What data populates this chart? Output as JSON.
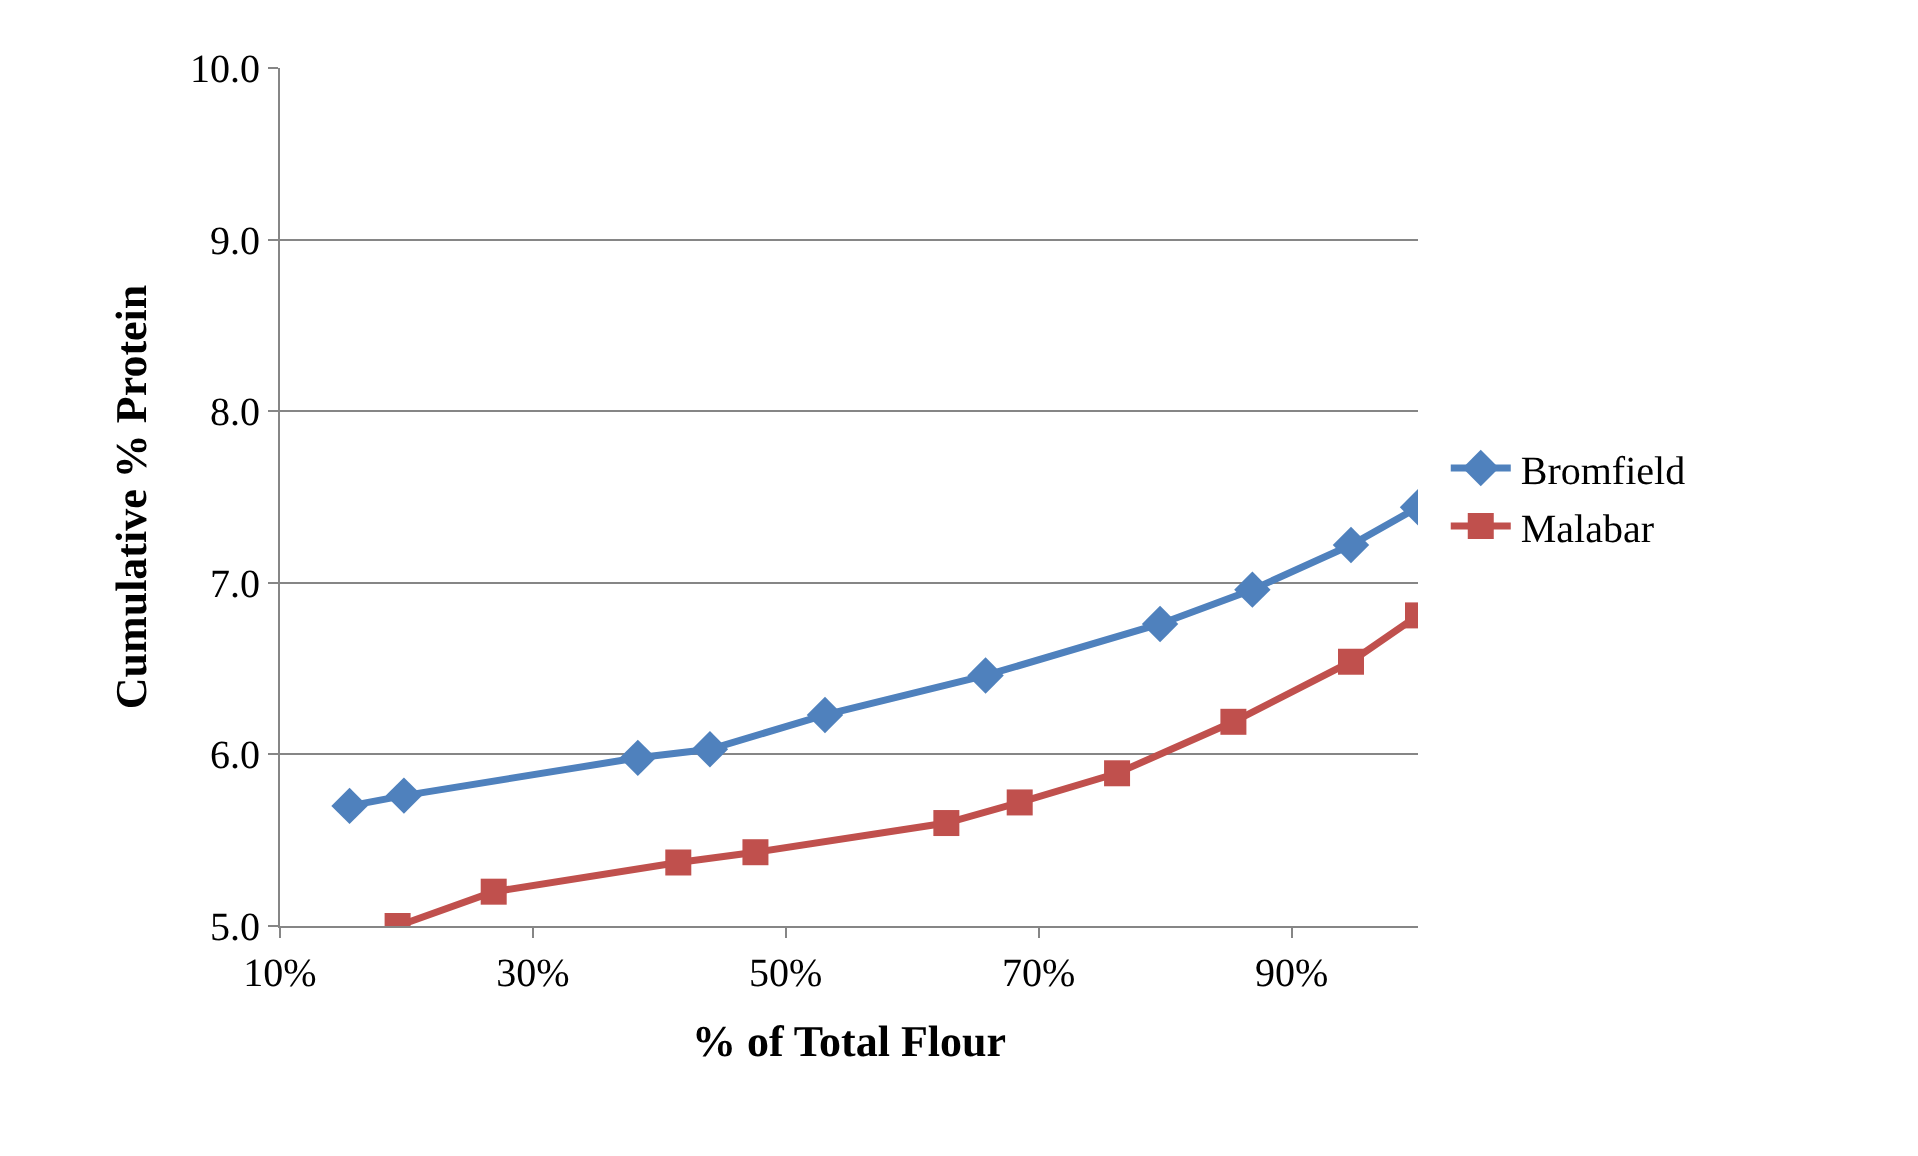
{
  "chart_data": {
    "type": "line",
    "xlabel": "% of Total Flour",
    "ylabel": "Cumulative % Protein",
    "series": [
      {
        "name": "Bromfield",
        "color": "#4f81bd",
        "marker": "diamond",
        "x": [
          15.5,
          19.8,
          38.3,
          44.0,
          53.1,
          65.8,
          79.6,
          86.9,
          94.7,
          100
        ],
        "values": [
          5.7,
          5.76,
          5.98,
          6.03,
          6.23,
          6.46,
          6.76,
          6.96,
          7.22,
          7.44
        ]
      },
      {
        "name": "Malabar",
        "color": "#c0504d",
        "marker": "square",
        "x": [
          19.3,
          26.9,
          41.5,
          47.6,
          62.7,
          68.5,
          76.2,
          85.4,
          94.7,
          100
        ],
        "values": [
          5.0,
          5.2,
          5.37,
          5.43,
          5.6,
          5.72,
          5.89,
          6.19,
          6.54,
          6.81
        ]
      }
    ],
    "xlim": [
      10,
      100
    ],
    "xticks": [
      {
        "value": 10,
        "label": "10%"
      },
      {
        "value": 30,
        "label": "30%"
      },
      {
        "value": 50,
        "label": "50%"
      },
      {
        "value": 70,
        "label": "70%"
      },
      {
        "value": 90,
        "label": "90%"
      }
    ],
    "ylim": [
      5.0,
      10.0
    ],
    "yticks": [
      {
        "value": 5,
        "label": "5.0"
      },
      {
        "value": 6,
        "label": "6.0"
      },
      {
        "value": 7,
        "label": "7.0"
      },
      {
        "value": 8,
        "label": "8.0"
      },
      {
        "value": 9,
        "label": "9.0"
      },
      {
        "value": 10,
        "label": "10.0"
      }
    ],
    "grid": "y",
    "legend": "right",
    "line_style": "solid"
  }
}
